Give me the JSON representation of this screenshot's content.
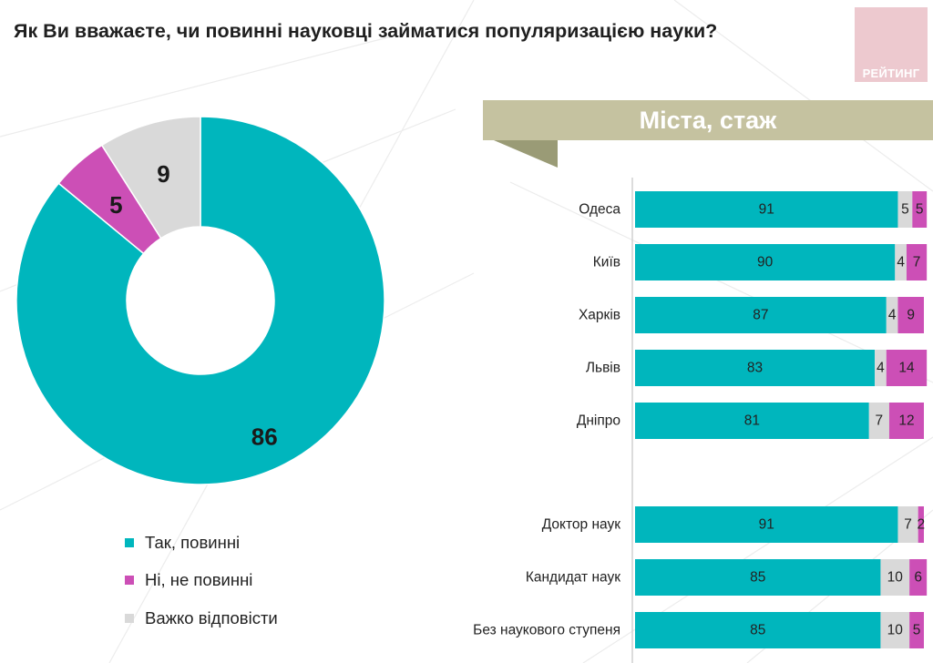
{
  "page": {
    "title": "Як Ви вважаєте, чи повинні науковці займатися популяризацією науки?",
    "logo_text": "РЕЙТИНГ",
    "banner_title": "Міста, стаж"
  },
  "colors": {
    "yes": "#00b6bd",
    "no": "#cc4fb6",
    "hard": "#d9d9d9",
    "banner": "#c5c2a0",
    "banner_shadow": "#9a9b76",
    "logo": "#edc9cf"
  },
  "legend": [
    {
      "key": "yes",
      "label": "Так, повинні"
    },
    {
      "key": "no",
      "label": "Ні, не повинні"
    },
    {
      "key": "hard",
      "label": "Важко відповісти"
    }
  ],
  "chart_data": [
    {
      "type": "pie",
      "donut": true,
      "title": "Як Ви вважаєте, чи повинні науковці займатися популяризацією науки?",
      "slices": [
        {
          "key": "yes",
          "label": "Так, повинні",
          "value": 86
        },
        {
          "key": "no",
          "label": "Ні, не повинні",
          "value": 5
        },
        {
          "key": "hard",
          "label": "Важко відповісти",
          "value": 9
        }
      ]
    },
    {
      "type": "bar",
      "orientation": "horizontal",
      "stacked": true,
      "title": "Міста, стаж",
      "groups": [
        {
          "categories": [
            "Одеса",
            "Київ",
            "Харків",
            "Львів",
            "Дніпро"
          ],
          "series": [
            {
              "key": "yes",
              "name": "Так, повинні",
              "values": [
                91,
                90,
                87,
                83,
                81
              ]
            },
            {
              "key": "hard",
              "name": "Важко відповісти",
              "values": [
                5,
                4,
                4,
                4,
                7
              ]
            },
            {
              "key": "no",
              "name": "Ні, не повинні",
              "values": [
                5,
                7,
                9,
                14,
                12
              ]
            }
          ]
        },
        {
          "categories": [
            "Доктор наук",
            "Кандидат наук",
            "Без наукового ступеня"
          ],
          "series": [
            {
              "key": "yes",
              "name": "Так, повинні",
              "values": [
                91,
                85,
                85
              ]
            },
            {
              "key": "hard",
              "name": "Важко відповісти",
              "values": [
                7,
                10,
                10
              ]
            },
            {
              "key": "no",
              "name": "Ні, не повинні",
              "values": [
                2,
                6,
                5
              ]
            }
          ]
        }
      ]
    }
  ]
}
